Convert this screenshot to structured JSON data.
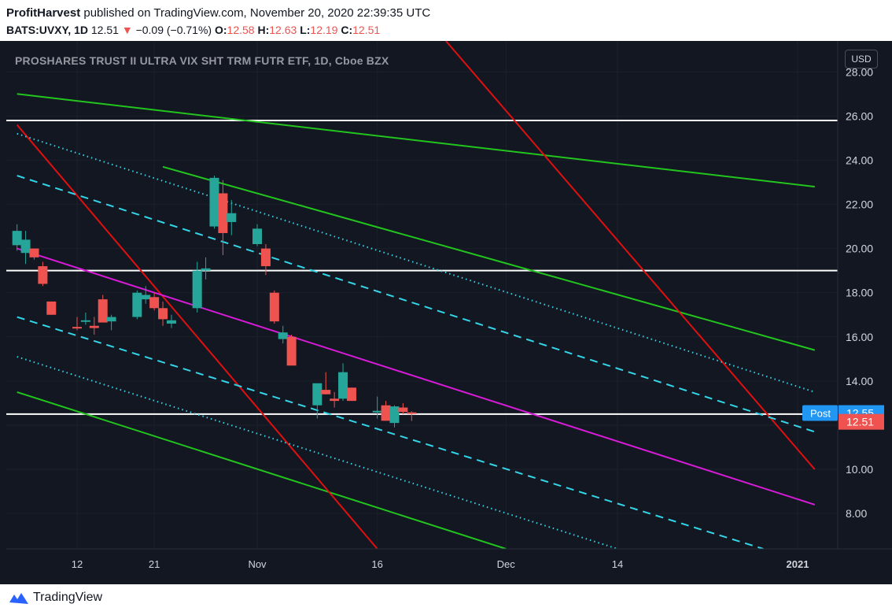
{
  "header": {
    "publisher": "ProfitHarvest",
    "published_text": " published on TradingView.com, November 20, 2020 22:39:35 UTC",
    "symbol": "BATS:UVXY, 1D",
    "last": "12.51",
    "arrow": "▼",
    "change": "−0.09 (−0.71%)",
    "o_label": "O:",
    "o_value": "12.58",
    "h_label": "H:",
    "h_value": "12.63",
    "l_label": "L:",
    "l_value": "12.19",
    "c_label": "C:",
    "c_value": "12.51"
  },
  "chart_title": "PROSHARES TRUST II ULTRA VIX SHT TRM FUTR ETF, 1D, Cboe BZX",
  "currency_button": "USD",
  "footer": {
    "brand": "TradingView",
    "logo_icon": "tradingview-logo-icon"
  },
  "colors": {
    "background": "#131722",
    "up": "#26a69a",
    "down": "#ef5350",
    "green_channel": "#22c51d",
    "red_line": "#e01010",
    "magenta_line": "#d81bd8",
    "cyan_line": "#33d6e8",
    "horizontal": "#ffffff",
    "post_badge": "#2196f3",
    "last_badge": "#ef5350"
  },
  "chart_data": {
    "type": "candlestick",
    "timeframe": "1D",
    "ylim": [
      6.4,
      29.4
    ],
    "y_ticks": [
      "28.00",
      "26.00",
      "24.00",
      "22.00",
      "20.00",
      "18.00",
      "16.00",
      "14.00",
      "12.00",
      "10.00",
      "8.00"
    ],
    "x_ticks": [
      "12",
      "21",
      "Nov",
      "16",
      "Dec",
      "14",
      "2021"
    ],
    "x_tick_dates": [
      "2020-10-12",
      "2020-10-21",
      "2020-11-02",
      "2020-11-16",
      "2020-12-01",
      "2020-12-14",
      "2021-01-04"
    ],
    "candles": [
      {
        "date": "2020-10-05",
        "o": 20.15,
        "h": 21.1,
        "l": 19.9,
        "c": 20.8
      },
      {
        "date": "2020-10-06",
        "o": 19.8,
        "h": 20.8,
        "l": 19.3,
        "c": 20.4
      },
      {
        "date": "2020-10-07",
        "o": 20.0,
        "h": 20.0,
        "l": 19.5,
        "c": 19.6
      },
      {
        "date": "2020-10-08",
        "o": 19.2,
        "h": 19.4,
        "l": 18.3,
        "c": 18.4
      },
      {
        "date": "2020-10-09",
        "o": 17.6,
        "h": 17.6,
        "l": 17.0,
        "c": 17.0
      },
      {
        "date": "2020-10-12",
        "o": 16.45,
        "h": 16.9,
        "l": 16.3,
        "c": 16.4
      },
      {
        "date": "2020-10-13",
        "o": 16.7,
        "h": 17.1,
        "l": 16.55,
        "c": 16.75
      },
      {
        "date": "2020-10-14",
        "o": 16.5,
        "h": 16.9,
        "l": 16.1,
        "c": 16.4
      },
      {
        "date": "2020-10-15",
        "o": 17.7,
        "h": 17.9,
        "l": 16.65,
        "c": 16.65
      },
      {
        "date": "2020-10-16",
        "o": 16.7,
        "h": 17.0,
        "l": 16.3,
        "c": 16.9
      },
      {
        "date": "2020-10-19",
        "o": 16.9,
        "h": 18.1,
        "l": 16.8,
        "c": 18.0
      },
      {
        "date": "2020-10-20",
        "o": 17.7,
        "h": 18.3,
        "l": 17.5,
        "c": 17.9
      },
      {
        "date": "2020-10-21",
        "o": 17.8,
        "h": 18.0,
        "l": 17.2,
        "c": 17.3
      },
      {
        "date": "2020-10-22",
        "o": 17.3,
        "h": 17.6,
        "l": 16.5,
        "c": 16.8
      },
      {
        "date": "2020-10-23",
        "o": 16.6,
        "h": 17.0,
        "l": 16.4,
        "c": 16.75
      },
      {
        "date": "2020-10-26",
        "o": 17.3,
        "h": 19.4,
        "l": 17.1,
        "c": 19.0
      },
      {
        "date": "2020-10-27",
        "o": 19.0,
        "h": 19.6,
        "l": 18.6,
        "c": 19.1
      },
      {
        "date": "2020-10-28",
        "o": 21.0,
        "h": 23.3,
        "l": 20.9,
        "c": 23.2
      },
      {
        "date": "2020-10-29",
        "o": 22.5,
        "h": 23.1,
        "l": 19.7,
        "c": 20.7
      },
      {
        "date": "2020-10-30",
        "o": 21.2,
        "h": 22.2,
        "l": 20.6,
        "c": 21.6
      },
      {
        "date": "2020-11-02",
        "o": 20.2,
        "h": 21.1,
        "l": 20.1,
        "c": 20.9
      },
      {
        "date": "2020-11-03",
        "o": 20.0,
        "h": 20.2,
        "l": 18.8,
        "c": 19.2
      },
      {
        "date": "2020-11-04",
        "o": 18.0,
        "h": 18.1,
        "l": 16.6,
        "c": 16.7
      },
      {
        "date": "2020-11-05",
        "o": 15.9,
        "h": 16.5,
        "l": 15.7,
        "c": 16.2
      },
      {
        "date": "2020-11-06",
        "o": 16.0,
        "h": 16.1,
        "l": 14.7,
        "c": 14.7
      },
      {
        "date": "2020-11-09",
        "o": 12.9,
        "h": 13.8,
        "l": 12.3,
        "c": 13.9
      },
      {
        "date": "2020-11-10",
        "o": 13.6,
        "h": 14.4,
        "l": 13.4,
        "c": 13.4
      },
      {
        "date": "2020-11-11",
        "o": 13.2,
        "h": 13.5,
        "l": 12.8,
        "c": 13.1
      },
      {
        "date": "2020-11-12",
        "o": 13.2,
        "h": 14.8,
        "l": 13.1,
        "c": 14.4
      },
      {
        "date": "2020-11-13",
        "o": 13.7,
        "h": 13.7,
        "l": 13.1,
        "c": 13.1
      },
      {
        "date": "2020-11-16",
        "o": 12.6,
        "h": 13.3,
        "l": 12.3,
        "c": 12.65
      },
      {
        "date": "2020-11-17",
        "o": 12.9,
        "h": 13.1,
        "l": 12.2,
        "c": 12.2
      },
      {
        "date": "2020-11-18",
        "o": 12.1,
        "h": 12.9,
        "l": 11.9,
        "c": 12.85
      },
      {
        "date": "2020-11-19",
        "o": 12.8,
        "h": 13.0,
        "l": 12.5,
        "c": 12.6
      },
      {
        "date": "2020-11-20",
        "o": 12.58,
        "h": 12.63,
        "l": 12.19,
        "c": 12.51
      }
    ],
    "horizontal_lines": [
      25.8,
      19.0,
      12.5
    ],
    "post_price": "12.55",
    "post_label": "Post",
    "last_price": "12.51",
    "trend_lines": [
      {
        "style": "green",
        "from": [
          "2020-10-05",
          27.0
        ],
        "to": [
          "2021-01-06",
          22.8
        ]
      },
      {
        "style": "green",
        "from": [
          "2020-10-05",
          13.5
        ],
        "to": [
          "2020-12-01",
          6.4
        ]
      },
      {
        "style": "green",
        "from": [
          "2020-10-22",
          23.7
        ],
        "to": [
          "2021-01-06",
          15.4
        ]
      },
      {
        "style": "red",
        "from": [
          "2020-10-05",
          25.6
        ],
        "to": [
          "2020-11-16",
          6.4
        ]
      },
      {
        "style": "red",
        "from": [
          "2020-11-24",
          29.4
        ],
        "to": [
          "2021-01-06",
          10.0
        ]
      },
      {
        "style": "magenta",
        "from": [
          "2020-10-05",
          20.0
        ],
        "to": [
          "2021-01-06",
          8.4
        ]
      },
      {
        "style": "cyan-dotted",
        "from": [
          "2020-10-05",
          25.2
        ],
        "to": [
          "2021-01-06",
          13.5
        ]
      },
      {
        "style": "cyan-dashed",
        "from": [
          "2020-10-05",
          23.3
        ],
        "to": [
          "2021-01-06",
          11.7
        ]
      },
      {
        "style": "cyan-dashed",
        "from": [
          "2020-10-05",
          16.9
        ],
        "to": [
          "2020-12-31",
          6.4
        ]
      },
      {
        "style": "cyan-dotted",
        "from": [
          "2020-10-05",
          15.1
        ],
        "to": [
          "2020-12-14",
          6.4
        ]
      }
    ]
  }
}
